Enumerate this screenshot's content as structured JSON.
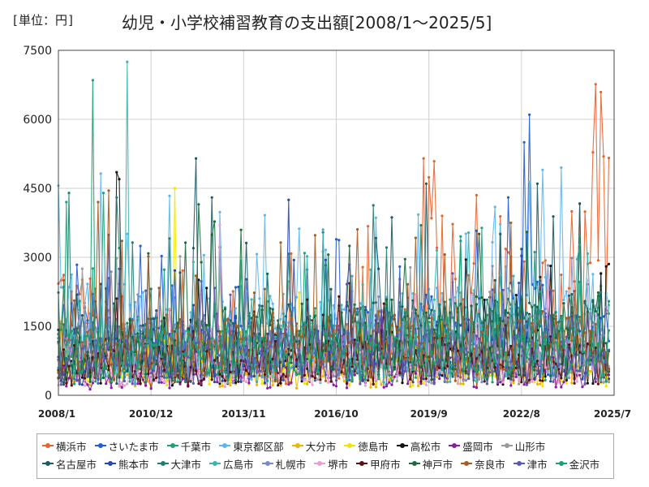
{
  "header": {
    "unit": "[単位：円]",
    "title": "幼児・小学校補習教育の支出額[2008/1～2025/5]"
  },
  "chart_data": {
    "type": "line",
    "title": "幼児・小学校補習教育の支出額[2008/1～2025/5]",
    "unit": "[単位：円]",
    "x_start": "2008/1",
    "x_end": "2025/7",
    "x_ticks": [
      "2008/1",
      "2010/12",
      "2013/11",
      "2016/10",
      "2019/9",
      "2022/8",
      "2025/7"
    ],
    "y_ticks": [
      0,
      1500,
      3000,
      4500,
      6000,
      7500
    ],
    "ylim": [
      0,
      7500
    ],
    "grid": true,
    "legend_position": "bottom",
    "series": [
      {
        "name": "横浜市",
        "color": "#e8632a",
        "anchors": [
          [
            0,
            2000
          ],
          [
            60,
            800
          ],
          [
            120,
            1200
          ],
          [
            150,
            2400
          ],
          [
            190,
            1800
          ],
          [
            205,
            4600
          ]
        ],
        "spike": [
          [
            138,
            5150
          ],
          [
            145,
            3900
          ]
        ]
      },
      {
        "name": "さいたま市",
        "color": "#1f5fd6",
        "anchors": [
          [
            0,
            1300
          ],
          [
            60,
            900
          ],
          [
            120,
            1300
          ],
          [
            160,
            1500
          ],
          [
            205,
            1800
          ]
        ],
        "spike": [
          [
            176,
            5500
          ],
          [
            178,
            6100
          ],
          [
            170,
            4300
          ]
        ]
      },
      {
        "name": "千葉市",
        "color": "#1aa37a",
        "anchors": [
          [
            0,
            1400
          ],
          [
            60,
            800
          ],
          [
            120,
            1200
          ],
          [
            205,
            1200
          ]
        ],
        "spike": [
          [
            3,
            4200
          ],
          [
            17,
            4400
          ]
        ]
      },
      {
        "name": "東京都区部",
        "color": "#5bb8ec",
        "anchors": [
          [
            0,
            1700
          ],
          [
            60,
            1300
          ],
          [
            120,
            1500
          ],
          [
            205,
            1700
          ]
        ],
        "spike": [
          [
            190,
            4950
          ],
          [
            183,
            4900
          ]
        ]
      },
      {
        "name": "大分市",
        "color": "#f0b400",
        "anchors": [
          [
            0,
            700
          ],
          [
            60,
            600
          ],
          [
            120,
            600
          ],
          [
            205,
            900
          ]
        ],
        "spike": []
      },
      {
        "name": "徳島市",
        "color": "#f5e400",
        "anchors": [
          [
            0,
            700
          ],
          [
            60,
            900
          ],
          [
            120,
            700
          ],
          [
            205,
            700
          ]
        ],
        "spike": [
          [
            44,
            4500
          ]
        ]
      },
      {
        "name": "高松市",
        "color": "#111111",
        "anchors": [
          [
            0,
            900
          ],
          [
            60,
            800
          ],
          [
            120,
            900
          ],
          [
            205,
            900
          ]
        ],
        "spike": [
          [
            22,
            4850
          ],
          [
            23,
            4700
          ],
          [
            154,
            2950
          ]
        ]
      },
      {
        "name": "盛岡市",
        "color": "#8a1aa6",
        "anchors": [
          [
            0,
            500
          ],
          [
            60,
            500
          ],
          [
            120,
            600
          ],
          [
            205,
            600
          ]
        ],
        "spike": []
      },
      {
        "name": "山形市",
        "color": "#9a9a9a",
        "anchors": [
          [
            0,
            900
          ],
          [
            60,
            1000
          ],
          [
            120,
            900
          ],
          [
            205,
            900
          ]
        ],
        "spike": []
      },
      {
        "name": "名古屋市",
        "color": "#1d5a63",
        "anchors": [
          [
            0,
            900
          ],
          [
            60,
            1200
          ],
          [
            120,
            1300
          ],
          [
            205,
            1400
          ]
        ],
        "spike": [
          [
            58,
            4300
          ],
          [
            52,
            5150
          ],
          [
            139,
            4600
          ],
          [
            181,
            4600
          ]
        ]
      },
      {
        "name": "熊本市",
        "color": "#2a4aa8",
        "anchors": [
          [
            0,
            900
          ],
          [
            60,
            900
          ],
          [
            120,
            1000
          ],
          [
            205,
            1100
          ]
        ],
        "spike": [
          [
            87,
            4250
          ]
        ]
      },
      {
        "name": "大津市",
        "color": "#1f7f6f",
        "anchors": [
          [
            0,
            1000
          ],
          [
            60,
            1200
          ],
          [
            120,
            1300
          ],
          [
            205,
            1400
          ]
        ],
        "spike": [
          [
            4,
            4400
          ],
          [
            22,
            4300
          ]
        ]
      },
      {
        "name": "広島市",
        "color": "#3ab4b4",
        "anchors": [
          [
            0,
            1000
          ],
          [
            60,
            900
          ],
          [
            120,
            1100
          ],
          [
            205,
            1200
          ]
        ],
        "spike": [
          [
            26,
            7250
          ],
          [
            100,
            3600
          ]
        ]
      },
      {
        "name": "札幌市",
        "color": "#7a8cc4",
        "anchors": [
          [
            0,
            1200
          ],
          [
            60,
            1000
          ],
          [
            120,
            1100
          ],
          [
            205,
            1200
          ]
        ],
        "spike": []
      },
      {
        "name": "堺市",
        "color": "#e8a0d4",
        "anchors": [
          [
            0,
            800
          ],
          [
            60,
            700
          ],
          [
            120,
            800
          ],
          [
            205,
            800
          ]
        ],
        "spike": [
          [
            61,
            3700
          ]
        ]
      },
      {
        "name": "甲府市",
        "color": "#5a1010",
        "anchors": [
          [
            0,
            700
          ],
          [
            60,
            700
          ],
          [
            120,
            800
          ],
          [
            205,
            800
          ]
        ],
        "spike": []
      },
      {
        "name": "神戸市",
        "color": "#1a6a3a",
        "anchors": [
          [
            0,
            900
          ],
          [
            60,
            1200
          ],
          [
            120,
            1300
          ],
          [
            205,
            1400
          ]
        ],
        "spike": [
          [
            53,
            4150
          ]
        ]
      },
      {
        "name": "奈良市",
        "color": "#a85a20",
        "anchors": [
          [
            0,
            1100
          ],
          [
            60,
            1100
          ],
          [
            120,
            1200
          ],
          [
            205,
            1200
          ]
        ],
        "spike": [
          [
            19,
            4450
          ],
          [
            15,
            4200
          ]
        ]
      },
      {
        "name": "津市",
        "color": "#5a5ab4",
        "anchors": [
          [
            0,
            800
          ],
          [
            60,
            900
          ],
          [
            120,
            900
          ],
          [
            205,
            900
          ]
        ],
        "spike": []
      },
      {
        "name": "金沢市",
        "color": "#1aa070",
        "anchors": [
          [
            0,
            900
          ],
          [
            60,
            900
          ],
          [
            120,
            1100
          ],
          [
            205,
            1100
          ]
        ],
        "spike": [
          [
            13,
            6850
          ]
        ]
      }
    ]
  }
}
